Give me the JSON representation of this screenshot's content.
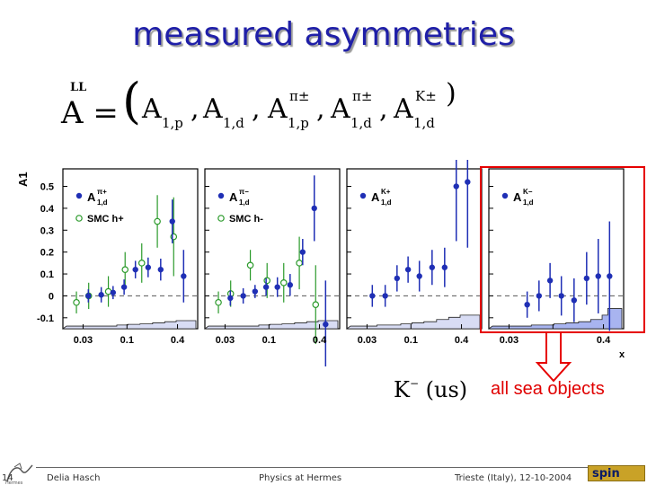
{
  "title": "measured asymmetries",
  "formula": {
    "ll": "LL",
    "lhs": "A =",
    "terms": [
      {
        "base": "A",
        "sub": "1,p",
        "sup": ""
      },
      {
        "base": "A",
        "sub": "1,d",
        "sup": ""
      },
      {
        "base": "A",
        "sub": "1,p",
        "sup": "π±"
      },
      {
        "base": "A",
        "sub": "1,d",
        "sup": "π±"
      },
      {
        "base": "A",
        "sub": "1,d",
        "sup": "K±"
      }
    ],
    "open": "(",
    "close": ")",
    "comma": ","
  },
  "chart_data": {
    "type": "scatter",
    "ylabel": "A1",
    "xlabel": "x",
    "x_scale": "log",
    "xlim": [
      0.02,
      0.6
    ],
    "ylim": [
      -0.15,
      0.58
    ],
    "x_tick_labels": [
      "0.03",
      "0.1",
      "0.4"
    ],
    "x_ticks": [
      0.03,
      0.1,
      0.4
    ],
    "y_ticks": [
      0.5,
      0.4,
      0.3,
      0.2,
      0.1,
      0,
      -0.1
    ],
    "y_tick_labels": [
      "0.5",
      "0.4",
      "0.3",
      "0.2",
      "0.1",
      "0",
      "-0.1"
    ],
    "panels": [
      {
        "label": "A",
        "label_sup": "π+",
        "label_sub": "1,d",
        "smc_label": "SMC h+",
        "hermes": [
          {
            "x": 0.033,
            "y": 0.0,
            "err": 0.03
          },
          {
            "x": 0.047,
            "y": 0.005,
            "err": 0.035
          },
          {
            "x": 0.065,
            "y": 0.015,
            "err": 0.03
          },
          {
            "x": 0.088,
            "y": 0.04,
            "err": 0.035
          },
          {
            "x": 0.12,
            "y": 0.12,
            "err": 0.04
          },
          {
            "x": 0.17,
            "y": 0.13,
            "err": 0.045
          },
          {
            "x": 0.24,
            "y": 0.12,
            "err": 0.05
          },
          {
            "x": 0.33,
            "y": 0.34,
            "err": 0.1
          },
          {
            "x": 0.45,
            "y": 0.09,
            "err": 0.12
          }
        ],
        "smc": [
          {
            "x": 0.025,
            "y": -0.03,
            "err": 0.05
          },
          {
            "x": 0.035,
            "y": 0.0,
            "err": 0.06
          },
          {
            "x": 0.06,
            "y": 0.02,
            "err": 0.07
          },
          {
            "x": 0.095,
            "y": 0.12,
            "err": 0.08
          },
          {
            "x": 0.15,
            "y": 0.15,
            "err": 0.09
          },
          {
            "x": 0.23,
            "y": 0.34,
            "err": 0.12
          },
          {
            "x": 0.36,
            "y": 0.27,
            "err": 0.18
          }
        ]
      },
      {
        "label": "A",
        "label_sup": "π−",
        "label_sub": "1,d",
        "smc_label": "SMC h-",
        "hermes": [
          {
            "x": 0.033,
            "y": -0.01,
            "err": 0.035
          },
          {
            "x": 0.047,
            "y": 0.0,
            "err": 0.035
          },
          {
            "x": 0.065,
            "y": 0.02,
            "err": 0.03
          },
          {
            "x": 0.088,
            "y": 0.04,
            "err": 0.04
          },
          {
            "x": 0.12,
            "y": 0.04,
            "err": 0.045
          },
          {
            "x": 0.17,
            "y": 0.05,
            "err": 0.05
          },
          {
            "x": 0.24,
            "y": 0.2,
            "err": 0.06
          },
          {
            "x": 0.33,
            "y": 0.4,
            "err": 0.15
          },
          {
            "x": 0.45,
            "y": -0.13,
            "err": 0.2
          }
        ],
        "smc": [
          {
            "x": 0.025,
            "y": -0.03,
            "err": 0.05
          },
          {
            "x": 0.035,
            "y": 0.01,
            "err": 0.06
          },
          {
            "x": 0.06,
            "y": 0.14,
            "err": 0.07
          },
          {
            "x": 0.095,
            "y": 0.07,
            "err": 0.08
          },
          {
            "x": 0.15,
            "y": 0.06,
            "err": 0.09
          },
          {
            "x": 0.23,
            "y": 0.15,
            "err": 0.12
          },
          {
            "x": 0.36,
            "y": -0.04,
            "err": 0.18
          }
        ]
      },
      {
        "label": "A",
        "label_sup": "K+",
        "label_sub": "1,d",
        "smc_label": "",
        "hermes": [
          {
            "x": 0.033,
            "y": 0.0,
            "err": 0.05
          },
          {
            "x": 0.047,
            "y": 0.0,
            "err": 0.05
          },
          {
            "x": 0.065,
            "y": 0.08,
            "err": 0.06
          },
          {
            "x": 0.088,
            "y": 0.12,
            "err": 0.06
          },
          {
            "x": 0.12,
            "y": 0.09,
            "err": 0.07
          },
          {
            "x": 0.17,
            "y": 0.13,
            "err": 0.08
          },
          {
            "x": 0.24,
            "y": 0.13,
            "err": 0.09
          },
          {
            "x": 0.33,
            "y": 0.5,
            "err": 0.25
          },
          {
            "x": 0.45,
            "y": 0.52,
            "err": 0.3
          }
        ],
        "smc": []
      },
      {
        "label": "A",
        "label_sup": "K−",
        "label_sub": "1,d",
        "smc_label": "",
        "hermes": [
          {
            "x": 0.047,
            "y": -0.04,
            "err": 0.06
          },
          {
            "x": 0.065,
            "y": 0.0,
            "err": 0.07
          },
          {
            "x": 0.088,
            "y": 0.07,
            "err": 0.08
          },
          {
            "x": 0.12,
            "y": 0.0,
            "err": 0.09
          },
          {
            "x": 0.17,
            "y": -0.02,
            "err": 0.1
          },
          {
            "x": 0.24,
            "y": 0.08,
            "err": 0.12
          },
          {
            "x": 0.33,
            "y": 0.09,
            "err": 0.17
          },
          {
            "x": 0.45,
            "y": 0.09,
            "err": 0.25
          }
        ],
        "smc": []
      }
    ],
    "systematics": [
      [
        0.0,
        0.0,
        0.0,
        0.005,
        0.008,
        0.01,
        0.015,
        0.02,
        0.025
      ],
      [
        0.0,
        0.0,
        0.0,
        0.005,
        0.008,
        0.01,
        0.015,
        0.02,
        0.025
      ],
      [
        0.0,
        0.005,
        0.005,
        0.01,
        0.015,
        0.02,
        0.03,
        0.04,
        0.05
      ],
      [
        0.0,
        0.005,
        0.005,
        0.01,
        0.015,
        0.02,
        0.03,
        0.05,
        0.08
      ]
    ],
    "colors": {
      "hermes": "#1f2fb5",
      "smc": "#2a9a2a",
      "frame": "#000000",
      "highlight": "#e60000",
      "sys_fill": "#a8b4f0"
    }
  },
  "kaon_note": {
    "symbol": "K",
    "charge": "−",
    "content": "(us)",
    "bar_part": "us"
  },
  "annotation": "all sea objects",
  "footer": {
    "author": "Delia Hasch",
    "talk": "Physics at Hermes",
    "venue": "Trieste (Italy), 12-10-2004",
    "page": "14",
    "logo_text": "spin"
  }
}
